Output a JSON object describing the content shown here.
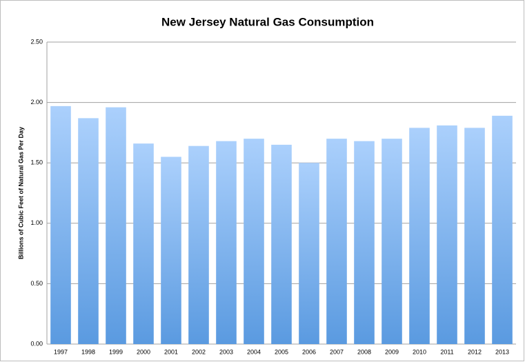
{
  "chart_data": {
    "type": "bar",
    "title": "New Jersey Natural Gas Consumption",
    "y_label": "Billions of Cubic Feet of Natural Gas Per Day",
    "categories": [
      "1997",
      "1998",
      "1999",
      "2000",
      "2001",
      "2002",
      "2003",
      "2004",
      "2005",
      "2006",
      "2007",
      "2008",
      "2009",
      "2010",
      "2011",
      "2012",
      "2013"
    ],
    "values": [
      1.97,
      1.87,
      1.96,
      1.66,
      1.55,
      1.64,
      1.68,
      1.7,
      1.65,
      1.5,
      1.7,
      1.68,
      1.7,
      1.79,
      1.81,
      1.79,
      1.89
    ],
    "gradient": [
      "#abd0fc",
      "#5a9ae0"
    ],
    "ylim": [
      0,
      2.5
    ],
    "yticks": [
      {
        "value": 0,
        "label": "0.00"
      },
      {
        "value": 0.5,
        "label": "0.50"
      },
      {
        "value": 1,
        "label": "1.00"
      },
      {
        "value": 1.5,
        "label": "1.50"
      },
      {
        "value": 2,
        "label": "2.00"
      },
      {
        "value": 2.5,
        "label": "2.50"
      }
    ],
    "grid": true
  }
}
